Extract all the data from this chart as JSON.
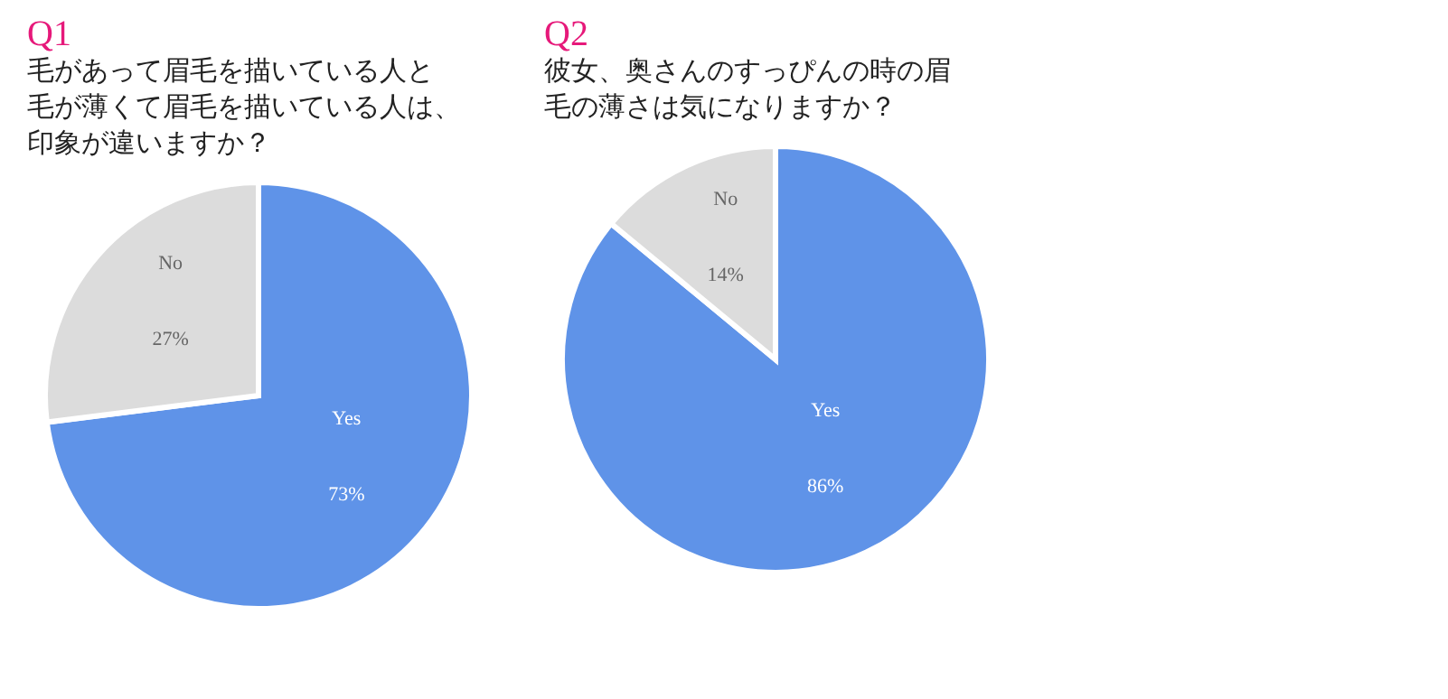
{
  "chart_data": [
    {
      "type": "pie",
      "title": "Q1",
      "subtitle": "毛があって眉毛を描いている人と毛が薄くて眉毛を描いている人は、印象が違いますか？",
      "categories": [
        "Yes",
        "No"
      ],
      "values": [
        73,
        27
      ],
      "colors": [
        "#5f93e8",
        "#dcdcdc"
      ],
      "value_labels": [
        "73%",
        "27%"
      ]
    },
    {
      "type": "pie",
      "title": "Q2",
      "subtitle": "彼女、奥さんのすっぴんの時の眉毛の薄さは気になりますか？",
      "categories": [
        "Yes",
        "No"
      ],
      "values": [
        86,
        14
      ],
      "colors": [
        "#5f93e8",
        "#dcdcdc"
      ],
      "value_labels": [
        "86%",
        "14%"
      ]
    }
  ]
}
